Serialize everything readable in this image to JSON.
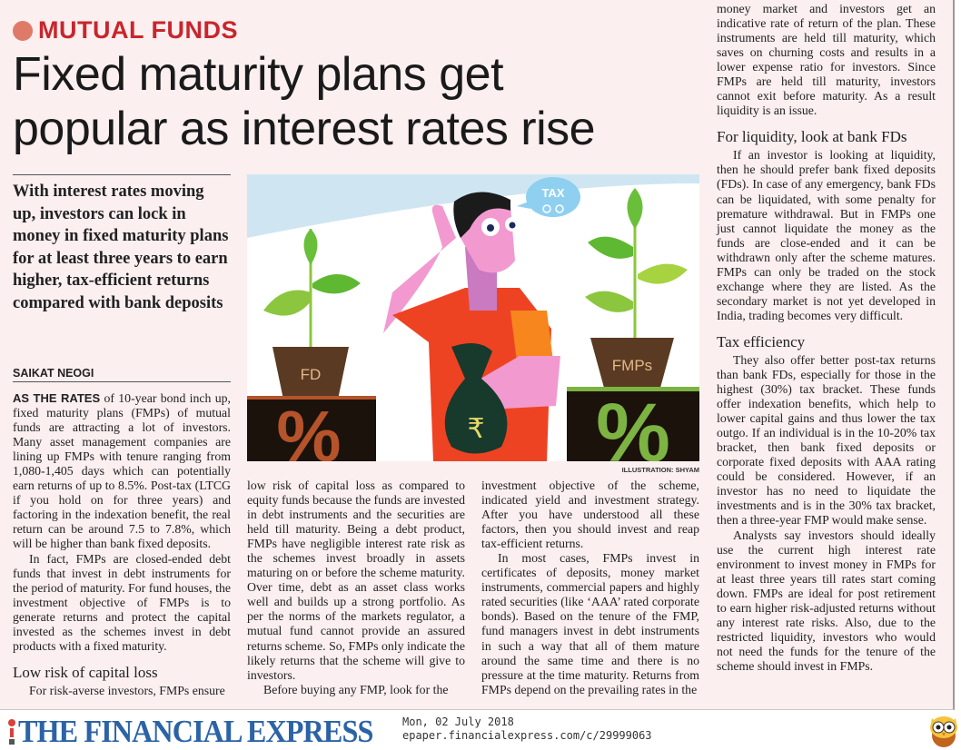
{
  "section": {
    "kicker": "MUTUAL FUNDS",
    "kicker_dot_color": "#e07a68",
    "kicker_color": "#c8262c"
  },
  "headline": "Fixed maturity plans get popular as interest rates rise",
  "deck": "With interest rates moving up, investors can lock in money in fixed maturity plans for at least three years to earn higher, tax-efficient returns compared with bank deposits",
  "byline": "SAIKAT NEOGI",
  "illustration": {
    "labels": {
      "left_pot": "FD",
      "right_pot": "FMPs",
      "bubble": "TAX",
      "bag": "₹",
      "percent": "%"
    },
    "credit": "ILLUSTRATION: SHYAM"
  },
  "col1": {
    "lead": "AS THE RATES",
    "p1": " of 10-year bond inch up, fixed maturity plans (FMPs) of mutual funds are attracting a lot of investors. Many asset management companies are lining up FMPs with tenure ranging from 1,080-1,405 days which can potentially earn returns of up to 8.5%. Post-tax (LTCG if you hold on for three years) and factoring in the indexation benefit, the real return can be around 7.5 to 7.8%, which will be higher than bank fixed deposits.",
    "p2": "In fact, FMPs are closed-ended debt funds that invest in debt instruments for the period of maturity. For fund houses, the investment objective of FMPs is to generate returns and protect the capital invested as the schemes invest in debt products with a fixed maturity.",
    "h1": "Low risk of capital loss",
    "p3": "For risk-averse investors, FMPs ensure"
  },
  "col2": {
    "p1": "low risk of capital loss as compared to equity funds because the funds are invested in debt instruments and the securities are held till maturity. Being a debt product, FMPs have negligible interest rate risk as the schemes invest broadly in assets maturing on or before the scheme maturity. Over time, debt as an asset class works well and builds up a strong portfolio. As per the norms of the markets regulator, a mutual fund cannot provide an assured returns scheme. So, FMPs only indicate the likely returns that the scheme will give to investors.",
    "p2": "Before buying any FMP, look for the"
  },
  "col3": {
    "p1": "investment objective of the scheme, indicated yield and investment strategy. After you have understood all these factors, then you should invest and reap tax-efficient returns.",
    "p2": "In most cases, FMPs invest in certificates of deposits, money market instruments, commercial papers and highly rated securities (like ‘AAA’ rated corporate bonds). Based on the tenure of the FMP, fund managers invest in debt instruments in such a way that all of them mature around the same time and there is no pressure at the time maturity. Returns from FMPs depend on the prevailing rates in the"
  },
  "col4": {
    "p1": "money market and investors get an indicative rate of return of the plan. These instruments are held till maturity, which saves on churning costs and results in a lower expense ratio for investors. Since FMPs are held till maturity, investors cannot exit before maturity. As a result liquidity is an issue.",
    "h1": "For liquidity, look at bank FDs",
    "p2": "If an investor is looking at liquidity, then he should prefer bank fixed deposits (FDs). In case of any emergency, bank FDs can be liquidated, with some penalty for premature withdrawal. But in FMPs one just cannot liquidate the money as the funds are close-ended and it can be withdrawn only after the scheme matures. FMPs can only be traded on the stock exchange where they are listed. As the secondary market is not yet developed in India, trading becomes very difficult.",
    "h2": "Tax efficiency",
    "p3": "They also offer better post-tax returns than bank FDs, especially for those in the highest (30%) tax bracket. These funds offer indexation benefits, which help to lower capital gains and thus lower the tax outgo. If an individual is in the 10-20% tax bracket, then bank fixed deposits or corporate fixed deposits with AAA rating could be considered. However, if an investor has no need to liquidate the investments and is in the 30% tax bracket, then a three-year FMP would make sense.",
    "p4": "Analysts say investors should ideally use the current high interest rate environment to invest money in FMPs for at least three years till rates start coming down. FMPs are ideal for post retirement to earn higher risk-adjusted returns without any interest rate risks. Also, due to the restricted liquidity, investors who would not need the funds for the tenure of the scheme should invest in FMPs."
  },
  "footer": {
    "logo": "THE FINANCIAL EXPRESS",
    "logo_color": "#2b63a6",
    "date": "Mon, 02 July 2018",
    "url": "epaper.financialexpress.com/c/29999063",
    "mascot_icon": "owl-icon"
  }
}
